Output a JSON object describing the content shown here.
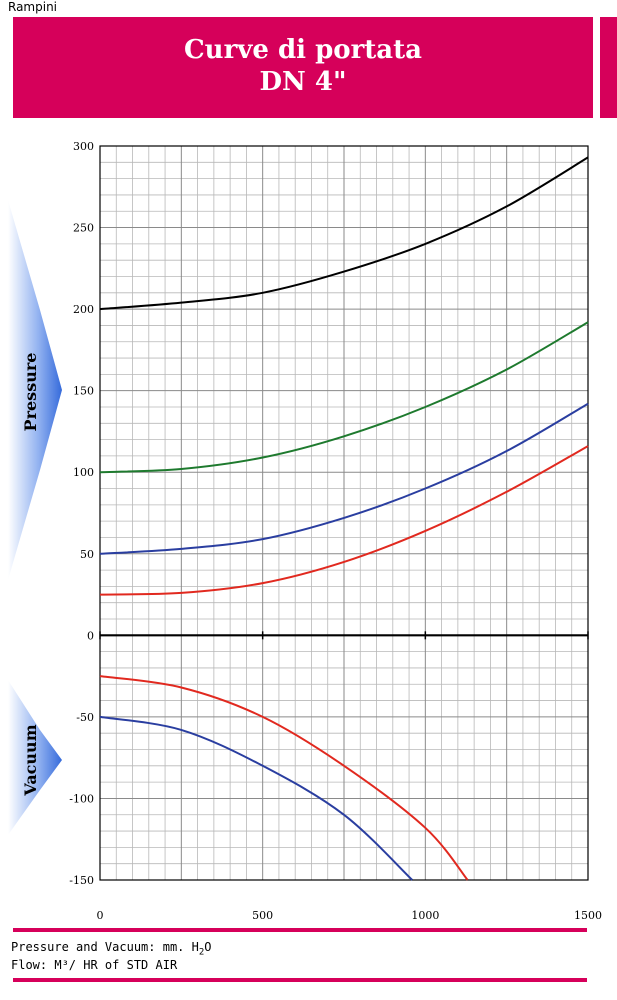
{
  "brand": "Rampini",
  "title": {
    "line1": "Curve di portata",
    "line2": "DN 4\""
  },
  "colors": {
    "accent": "#d6005a",
    "arrow": "#2b63d9"
  },
  "chart_data": {
    "type": "line",
    "xlim": [
      0,
      1500
    ],
    "ylim": [
      -150,
      300
    ],
    "x_ticks": [
      0,
      500,
      1000,
      1500
    ],
    "y_ticks": [
      300,
      250,
      200,
      150,
      100,
      50,
      0,
      -50,
      -100,
      -150
    ],
    "grid": true,
    "side_labels": {
      "pressure": "Pressure",
      "vacuum": "Vacuum"
    },
    "series": [
      {
        "color": "#000000",
        "x": [
          0,
          250,
          500,
          750,
          1000,
          1250,
          1500
        ],
        "y": [
          200,
          204,
          210,
          223,
          240,
          263,
          293
        ]
      },
      {
        "color": "#1e7a2e",
        "x": [
          0,
          250,
          500,
          750,
          1000,
          1250,
          1500
        ],
        "y": [
          100,
          102,
          109,
          122,
          140,
          163,
          192
        ]
      },
      {
        "color": "#2a3ea0",
        "x": [
          0,
          250,
          500,
          750,
          1000,
          1250,
          1500
        ],
        "y": [
          50,
          53,
          59,
          72,
          90,
          113,
          142
        ]
      },
      {
        "color": "#e1291f",
        "x": [
          0,
          250,
          500,
          750,
          1000,
          1250,
          1500
        ],
        "y": [
          25,
          26,
          32,
          45,
          64,
          88,
          116
        ]
      },
      {
        "color": "#e1291f",
        "x": [
          0,
          250,
          500,
          750,
          1000,
          1130
        ],
        "y": [
          -25,
          -32,
          -50,
          -80,
          -118,
          -150
        ]
      },
      {
        "color": "#2a3ea0",
        "x": [
          0,
          250,
          500,
          750,
          960
        ],
        "y": [
          -50,
          -58,
          -80,
          -110,
          -150
        ]
      }
    ]
  },
  "footer": {
    "line1_prefix": "Pressure and Vacuum: mm. H",
    "line1_sub1": "2",
    "line1_suffix": "O",
    "line2": "Flow: M³/ HR of STD AIR"
  }
}
